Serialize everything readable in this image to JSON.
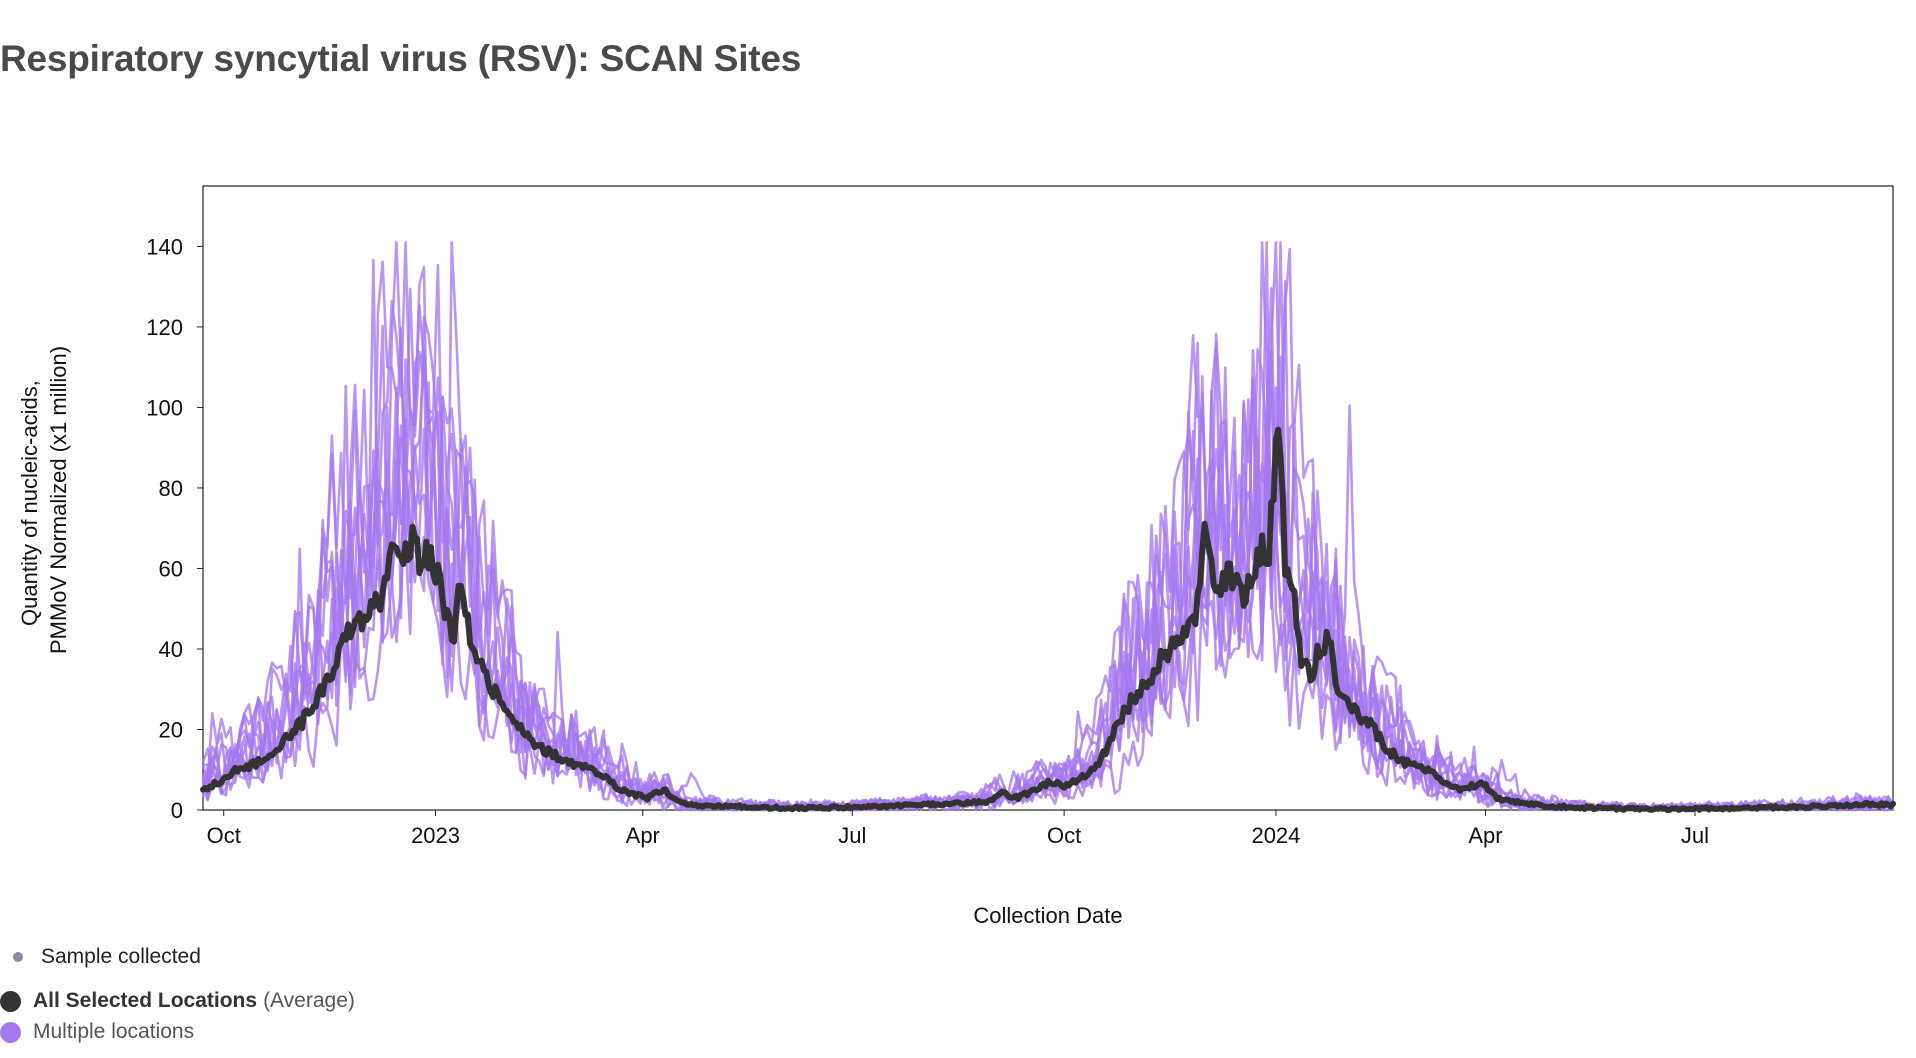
{
  "title": "Respiratory syncytial virus (RSV): SCAN Sites",
  "colors": {
    "average_line": "#333333",
    "location_lines": "#a578ee",
    "sample_dot": "#8e8a9e",
    "axis": "#222222"
  },
  "chart_data": {
    "type": "line",
    "title": "Respiratory syncytial virus (RSV): SCAN Sites",
    "xlabel": "Collection Date",
    "ylabel_lines": [
      "Quantity of nucleic-acids,",
      "PMMoV Normalized (x1 million)"
    ],
    "x_start": "2022-09-22",
    "x_end": "2024-09-25",
    "ylim": [
      0,
      155
    ],
    "x_ticks": [
      {
        "label": "Oct",
        "date": "2022-10-01"
      },
      {
        "label": "2023",
        "date": "2023-01-01"
      },
      {
        "label": "Apr",
        "date": "2023-04-01"
      },
      {
        "label": "Jul",
        "date": "2023-07-01"
      },
      {
        "label": "Oct",
        "date": "2023-10-01"
      },
      {
        "label": "2024",
        "date": "2024-01-01"
      },
      {
        "label": "Apr",
        "date": "2024-04-01"
      },
      {
        "label": "Jul",
        "date": "2024-07-01"
      }
    ],
    "y_ticks": [
      0,
      20,
      40,
      60,
      80,
      100,
      120,
      140
    ],
    "average_series": {
      "name": "All Selected Locations (Average)",
      "points": [
        [
          "2022-09-22",
          5
        ],
        [
          "2022-09-29",
          7
        ],
        [
          "2022-10-06",
          10
        ],
        [
          "2022-10-13",
          11
        ],
        [
          "2022-10-20",
          13
        ],
        [
          "2022-10-27",
          17
        ],
        [
          "2022-11-03",
          21
        ],
        [
          "2022-11-10",
          27
        ],
        [
          "2022-11-17",
          35
        ],
        [
          "2022-11-24",
          44
        ],
        [
          "2022-12-01",
          47
        ],
        [
          "2022-12-08",
          52
        ],
        [
          "2022-12-12",
          61
        ],
        [
          "2022-12-15",
          68
        ],
        [
          "2022-12-19",
          63
        ],
        [
          "2022-12-22",
          67
        ],
        [
          "2022-12-26",
          60
        ],
        [
          "2022-12-29",
          64
        ],
        [
          "2023-01-02",
          58
        ],
        [
          "2023-01-05",
          50
        ],
        [
          "2023-01-09",
          42
        ],
        [
          "2023-01-12",
          58
        ],
        [
          "2023-01-16",
          44
        ],
        [
          "2023-01-23",
          33
        ],
        [
          "2023-01-30",
          26
        ],
        [
          "2023-02-06",
          21
        ],
        [
          "2023-02-13",
          16
        ],
        [
          "2023-02-20",
          14
        ],
        [
          "2023-02-27",
          12
        ],
        [
          "2023-03-06",
          11
        ],
        [
          "2023-03-13",
          9
        ],
        [
          "2023-03-20",
          6
        ],
        [
          "2023-03-27",
          4
        ],
        [
          "2023-04-03",
          3
        ],
        [
          "2023-04-10",
          5
        ],
        [
          "2023-04-17",
          2
        ],
        [
          "2023-04-24",
          1
        ],
        [
          "2023-05-08",
          1
        ],
        [
          "2023-05-22",
          0.6
        ],
        [
          "2023-06-05",
          0.5
        ],
        [
          "2023-06-19",
          0.6
        ],
        [
          "2023-07-03",
          0.8
        ],
        [
          "2023-07-17",
          1
        ],
        [
          "2023-07-31",
          1.3
        ],
        [
          "2023-08-14",
          1.5
        ],
        [
          "2023-08-28",
          2
        ],
        [
          "2023-09-04",
          4
        ],
        [
          "2023-09-11",
          3
        ],
        [
          "2023-09-18",
          5
        ],
        [
          "2023-09-25",
          7
        ],
        [
          "2023-10-02",
          6
        ],
        [
          "2023-10-09",
          8
        ],
        [
          "2023-10-16",
          11
        ],
        [
          "2023-10-23",
          20
        ],
        [
          "2023-10-30",
          27
        ],
        [
          "2023-11-06",
          32
        ],
        [
          "2023-11-13",
          38
        ],
        [
          "2023-11-20",
          42
        ],
        [
          "2023-11-27",
          47
        ],
        [
          "2023-12-01",
          72
        ],
        [
          "2023-12-04",
          60
        ],
        [
          "2023-12-08",
          55
        ],
        [
          "2023-12-11",
          60
        ],
        [
          "2023-12-15",
          55
        ],
        [
          "2023-12-18",
          52
        ],
        [
          "2023-12-22",
          60
        ],
        [
          "2023-12-26",
          66
        ],
        [
          "2023-12-29",
          64
        ],
        [
          "2024-01-02",
          96
        ],
        [
          "2024-01-05",
          62
        ],
        [
          "2024-01-09",
          52
        ],
        [
          "2024-01-12",
          38
        ],
        [
          "2024-01-16",
          33
        ],
        [
          "2024-01-20",
          40
        ],
        [
          "2024-01-24",
          42
        ],
        [
          "2024-01-28",
          30
        ],
        [
          "2024-02-03",
          25
        ],
        [
          "2024-02-10",
          22
        ],
        [
          "2024-02-17",
          16
        ],
        [
          "2024-02-24",
          12
        ],
        [
          "2024-03-02",
          11
        ],
        [
          "2024-03-09",
          9
        ],
        [
          "2024-03-16",
          6
        ],
        [
          "2024-03-23",
          5
        ],
        [
          "2024-03-30",
          7
        ],
        [
          "2024-04-06",
          3
        ],
        [
          "2024-04-13",
          2
        ],
        [
          "2024-04-20",
          1.5
        ],
        [
          "2024-04-27",
          1
        ],
        [
          "2024-05-11",
          0.6
        ],
        [
          "2024-05-25",
          0.4
        ],
        [
          "2024-06-08",
          0.3
        ],
        [
          "2024-06-22",
          0.3
        ],
        [
          "2024-07-06",
          0.4
        ],
        [
          "2024-07-20",
          0.5
        ],
        [
          "2024-08-03",
          0.6
        ],
        [
          "2024-08-17",
          0.8
        ],
        [
          "2024-08-31",
          1
        ],
        [
          "2024-09-14",
          1.5
        ],
        [
          "2024-09-25",
          1.2
        ]
      ]
    },
    "location_series": {
      "name": "Multiple locations",
      "count": 10,
      "peak_values_season_1": [
        141,
        128,
        122,
        98,
        92,
        88,
        85,
        75,
        70,
        66
      ],
      "peak_values_season_2": [
        140,
        127,
        118,
        105,
        100,
        93,
        88,
        80,
        73,
        70
      ]
    }
  },
  "legend": {
    "sample_label": "Sample collected",
    "average_label_bold": "All Selected Locations",
    "average_label_suffix": "(Average)",
    "multi_label": "Multiple locations"
  }
}
